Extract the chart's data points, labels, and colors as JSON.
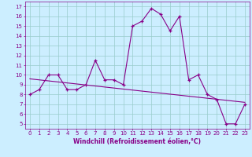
{
  "xlabel": "Windchill (Refroidissement éolien,°C)",
  "x_data": [
    0,
    1,
    2,
    3,
    4,
    5,
    6,
    7,
    8,
    9,
    10,
    11,
    12,
    13,
    14,
    15,
    16,
    17,
    18,
    19,
    20,
    21,
    22,
    23
  ],
  "y_data": [
    8.0,
    8.5,
    10.0,
    10.0,
    8.5,
    8.5,
    9.0,
    11.5,
    9.5,
    9.5,
    9.0,
    15.0,
    15.5,
    16.8,
    16.2,
    14.5,
    16.0,
    9.5,
    10.0,
    8.0,
    7.5,
    5.0,
    5.0,
    7.0
  ],
  "trend_x": [
    0,
    23
  ],
  "trend_y": [
    9.6,
    7.2
  ],
  "line_color": "#880088",
  "bg_color": "#cceeff",
  "grid_color": "#99cccc",
  "tick_color": "#880088",
  "xlim": [
    -0.5,
    23.5
  ],
  "ylim": [
    4.5,
    17.5
  ],
  "xticks": [
    0,
    1,
    2,
    3,
    4,
    5,
    6,
    7,
    8,
    9,
    10,
    11,
    12,
    13,
    14,
    15,
    16,
    17,
    18,
    19,
    20,
    21,
    22,
    23
  ],
  "yticks": [
    5,
    6,
    7,
    8,
    9,
    10,
    11,
    12,
    13,
    14,
    15,
    16,
    17
  ],
  "tick_fontsize": 5.0,
  "xlabel_fontsize": 5.5
}
